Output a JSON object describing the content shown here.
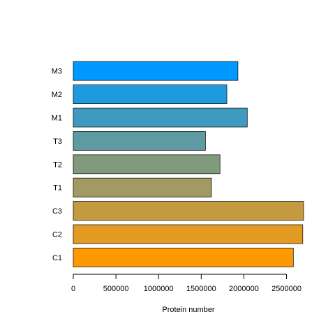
{
  "chart_data": {
    "type": "bar",
    "orientation": "horizontal",
    "title": "",
    "xlabel": "Protein number",
    "ylabel": "",
    "categories": [
      "C1",
      "C2",
      "C3",
      "T1",
      "T2",
      "T3",
      "M1",
      "M2",
      "M3"
    ],
    "values": [
      2580000,
      2690000,
      2700000,
      1620000,
      1720000,
      1550000,
      2040000,
      1800000,
      1930000
    ],
    "colors": [
      "#FF9900",
      "#E39A22",
      "#C49A40",
      "#A19A62",
      "#819A7C",
      "#5E9AA2",
      "#3F9AC0",
      "#209ADF",
      "#0099FF"
    ],
    "xlim": [
      0,
      2700000
    ],
    "xticks": [
      0,
      500000,
      1000000,
      1500000,
      2000000,
      2500000
    ],
    "xtick_labels": [
      "0",
      "500000",
      "1000000",
      "1500000",
      "2000000",
      "2500000"
    ],
    "grid": false,
    "legend": "none"
  }
}
